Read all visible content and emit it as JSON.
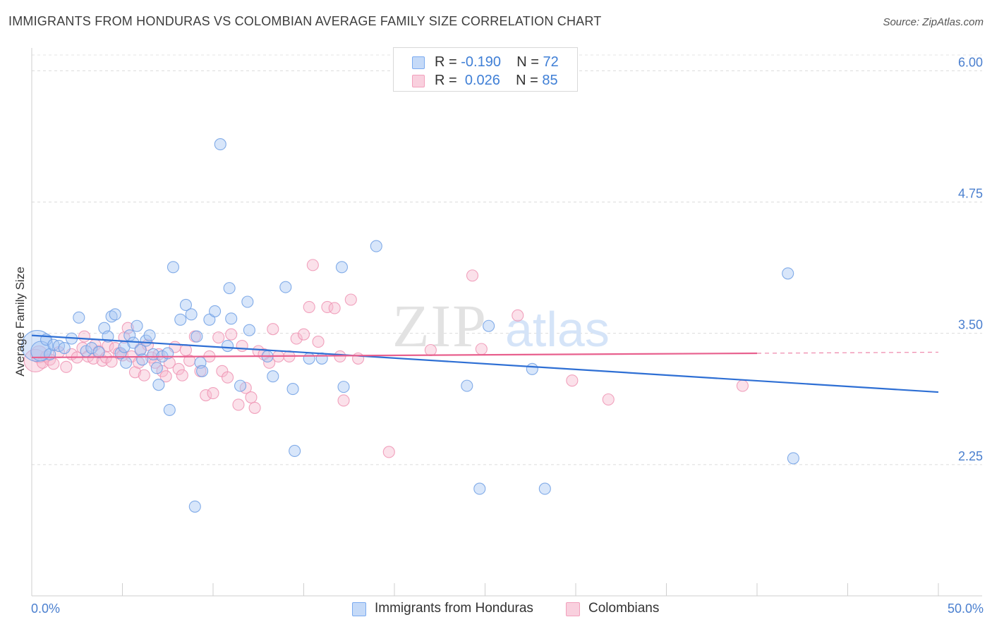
{
  "title": "IMMIGRANTS FROM HONDURAS VS COLOMBIAN AVERAGE FAMILY SIZE CORRELATION CHART",
  "source": "Source: ZipAtlas.com",
  "watermark": {
    "zip": "ZIP",
    "atlas": "atlas"
  },
  "legend_top": {
    "rows": [
      {
        "r_label": "R =",
        "r_value": "-0.190",
        "n_label": "N =",
        "n_value": "72",
        "color": "#7aaaf0"
      },
      {
        "r_label": "R =",
        "r_value": "0.026",
        "n_label": "N =",
        "n_value": "85",
        "color": "#f2a0bc"
      }
    ]
  },
  "legend_bottom": [
    {
      "label": "Immigrants from Honduras",
      "color": "#7aaaf0"
    },
    {
      "label": "Colombians",
      "color": "#f2a0bc"
    }
  ],
  "chart_data": {
    "type": "scatter",
    "ylabel": "Average Family Size",
    "xlim": [
      0,
      50
    ],
    "ylim": [
      1.0,
      6.15
    ],
    "x_tick_labels": [
      "0.0%",
      "50.0%"
    ],
    "y_ticks": [
      2.25,
      3.5,
      4.75,
      6.0
    ],
    "y_tick_labels": [
      "2.25",
      "3.50",
      "4.75",
      "6.00"
    ],
    "grid": true,
    "colors": {
      "blue_fill": "#a9c8f5",
      "blue_stroke": "#6f9fe4",
      "blue_line": "#2e6fd4",
      "pink_fill": "#f6bcd0",
      "pink_stroke": "#ee93b3",
      "pink_line": "#e8608e",
      "axis_text": "#4a7fcf"
    },
    "series": [
      {
        "name": "Immigrants from Honduras",
        "trend": {
          "x": [
            0,
            50
          ],
          "y": [
            3.48,
            2.94
          ]
        },
        "points": [
          [
            0.3,
            3.38,
            22
          ],
          [
            0.5,
            3.33,
            14
          ],
          [
            0.8,
            3.44,
            8
          ],
          [
            1.0,
            3.3,
            8
          ],
          [
            1.2,
            3.39,
            8
          ],
          [
            1.5,
            3.38,
            8
          ],
          [
            1.8,
            3.36,
            8
          ],
          [
            2.2,
            3.45,
            8
          ],
          [
            2.6,
            3.65,
            8
          ],
          [
            3.0,
            3.33,
            8
          ],
          [
            3.3,
            3.36,
            8
          ],
          [
            3.7,
            3.32,
            8
          ],
          [
            4.0,
            3.55,
            8
          ],
          [
            4.2,
            3.47,
            8
          ],
          [
            4.4,
            3.66,
            8
          ],
          [
            4.6,
            3.68,
            8
          ],
          [
            4.9,
            3.31,
            8
          ],
          [
            5.1,
            3.37,
            8
          ],
          [
            5.2,
            3.22,
            8
          ],
          [
            5.4,
            3.48,
            8
          ],
          [
            5.6,
            3.41,
            8
          ],
          [
            5.8,
            3.57,
            8
          ],
          [
            6.0,
            3.34,
            8
          ],
          [
            6.1,
            3.25,
            8
          ],
          [
            6.3,
            3.43,
            8
          ],
          [
            6.5,
            3.48,
            8
          ],
          [
            6.7,
            3.3,
            8
          ],
          [
            6.9,
            3.17,
            8
          ],
          [
            7.0,
            3.01,
            8
          ],
          [
            7.2,
            3.28,
            8
          ],
          [
            7.5,
            3.31,
            8
          ],
          [
            7.6,
            2.77,
            8
          ],
          [
            7.8,
            4.13,
            8
          ],
          [
            8.2,
            3.63,
            8
          ],
          [
            8.5,
            3.77,
            8
          ],
          [
            8.8,
            3.68,
            8
          ],
          [
            9.1,
            3.47,
            8
          ],
          [
            9.3,
            3.22,
            8
          ],
          [
            9.4,
            3.14,
            8
          ],
          [
            9.0,
            1.85,
            8
          ],
          [
            9.8,
            3.63,
            8
          ],
          [
            10.1,
            3.71,
            8
          ],
          [
            10.4,
            5.3,
            8
          ],
          [
            10.9,
            3.93,
            8
          ],
          [
            11.0,
            3.64,
            8
          ],
          [
            10.8,
            3.38,
            8
          ],
          [
            11.5,
            3.0,
            8
          ],
          [
            11.9,
            3.8,
            8
          ],
          [
            12.0,
            3.53,
            8
          ],
          [
            13.0,
            3.28,
            8
          ],
          [
            13.3,
            3.09,
            8
          ],
          [
            14.0,
            3.94,
            8
          ],
          [
            14.4,
            2.97,
            8
          ],
          [
            14.5,
            2.38,
            8
          ],
          [
            15.3,
            3.26,
            8
          ],
          [
            16.0,
            3.26,
            8
          ],
          [
            17.1,
            4.13,
            8
          ],
          [
            17.2,
            2.99,
            8
          ],
          [
            19.0,
            4.33,
            8
          ],
          [
            24.0,
            3.0,
            8
          ],
          [
            24.7,
            2.02,
            8
          ],
          [
            25.2,
            3.57,
            8
          ],
          [
            27.6,
            3.16,
            8
          ],
          [
            28.3,
            2.02,
            8
          ],
          [
            41.7,
            4.07,
            8
          ],
          [
            42.0,
            2.31,
            8
          ]
        ]
      },
      {
        "name": "Colombians",
        "trend": {
          "x": [
            0,
            40
          ],
          "y": [
            3.27,
            3.31
          ]
        },
        "points": [
          [
            0.2,
            3.24,
            16
          ],
          [
            0.4,
            3.3,
            12
          ],
          [
            0.6,
            3.22,
            8
          ],
          [
            0.8,
            3.28,
            8
          ],
          [
            1.0,
            3.25,
            8
          ],
          [
            1.2,
            3.21,
            8
          ],
          [
            1.5,
            3.32,
            8
          ],
          [
            1.9,
            3.18,
            8
          ],
          [
            2.2,
            3.3,
            8
          ],
          [
            2.5,
            3.27,
            8
          ],
          [
            2.8,
            3.36,
            8
          ],
          [
            2.9,
            3.47,
            8
          ],
          [
            3.1,
            3.28,
            8
          ],
          [
            3.4,
            3.26,
            8
          ],
          [
            3.5,
            3.39,
            8
          ],
          [
            3.7,
            3.33,
            8
          ],
          [
            3.9,
            3.24,
            8
          ],
          [
            4.1,
            3.27,
            8
          ],
          [
            4.2,
            3.38,
            8
          ],
          [
            4.4,
            3.23,
            8
          ],
          [
            4.6,
            3.36,
            8
          ],
          [
            4.8,
            3.31,
            8
          ],
          [
            5.0,
            3.29,
            8
          ],
          [
            5.1,
            3.46,
            8
          ],
          [
            5.3,
            3.55,
            8
          ],
          [
            5.5,
            3.28,
            8
          ],
          [
            5.7,
            3.13,
            8
          ],
          [
            5.9,
            3.22,
            8
          ],
          [
            6.0,
            3.35,
            8
          ],
          [
            6.2,
            3.1,
            8
          ],
          [
            6.4,
            3.39,
            8
          ],
          [
            6.6,
            3.27,
            8
          ],
          [
            6.8,
            3.22,
            8
          ],
          [
            7.0,
            3.3,
            8
          ],
          [
            7.2,
            3.14,
            8
          ],
          [
            7.4,
            3.09,
            8
          ],
          [
            7.6,
            3.22,
            8
          ],
          [
            7.9,
            3.37,
            8
          ],
          [
            8.1,
            3.16,
            8
          ],
          [
            8.3,
            3.1,
            8
          ],
          [
            8.5,
            3.34,
            8
          ],
          [
            8.7,
            3.24,
            8
          ],
          [
            9.0,
            3.47,
            8
          ],
          [
            9.3,
            3.14,
            8
          ],
          [
            9.6,
            2.91,
            8
          ],
          [
            9.8,
            3.28,
            8
          ],
          [
            10.0,
            2.93,
            8
          ],
          [
            10.3,
            3.46,
            8
          ],
          [
            10.5,
            3.14,
            8
          ],
          [
            10.8,
            3.08,
            8
          ],
          [
            11.0,
            3.49,
            8
          ],
          [
            11.4,
            2.82,
            8
          ],
          [
            11.6,
            3.38,
            8
          ],
          [
            11.8,
            2.98,
            8
          ],
          [
            12.1,
            2.89,
            8
          ],
          [
            12.3,
            2.79,
            8
          ],
          [
            12.5,
            3.33,
            8
          ],
          [
            12.8,
            3.3,
            8
          ],
          [
            13.1,
            3.22,
            8
          ],
          [
            13.3,
            3.54,
            8
          ],
          [
            13.6,
            3.28,
            8
          ],
          [
            14.2,
            3.28,
            8
          ],
          [
            14.6,
            3.45,
            8
          ],
          [
            15.0,
            3.49,
            8
          ],
          [
            15.3,
            3.75,
            8
          ],
          [
            15.5,
            4.15,
            8
          ],
          [
            15.8,
            3.42,
            8
          ],
          [
            16.3,
            3.75,
            8
          ],
          [
            16.7,
            3.74,
            8
          ],
          [
            17.0,
            3.28,
            8
          ],
          [
            17.2,
            2.86,
            8
          ],
          [
            17.6,
            3.82,
            8
          ],
          [
            18.0,
            3.26,
            8
          ],
          [
            19.7,
            2.37,
            8
          ],
          [
            22.0,
            3.34,
            8
          ],
          [
            24.3,
            4.05,
            8
          ],
          [
            24.8,
            3.35,
            8
          ],
          [
            26.8,
            3.67,
            8
          ],
          [
            29.8,
            3.05,
            8
          ],
          [
            31.8,
            2.87,
            8
          ],
          [
            39.2,
            3.0,
            8
          ]
        ]
      }
    ]
  }
}
